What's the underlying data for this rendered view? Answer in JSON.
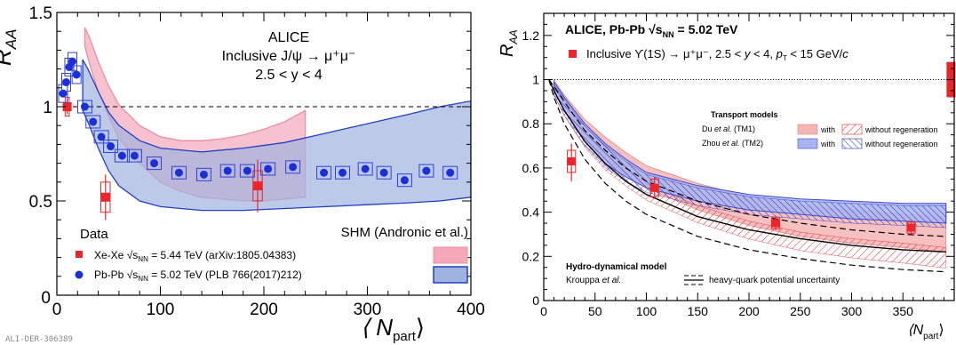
{
  "footer_id": "ALI-DER-306389",
  "chart_data": [
    {
      "type": "scatter",
      "ylabel_main": "R",
      "ylabel_sub": "AA",
      "xlabel_main": "⟨ N",
      "xlabel_sub": "part",
      "xlabel_close": "⟩",
      "xlim": [
        0,
        400
      ],
      "ylim": [
        0,
        1.5
      ],
      "xticks": [
        0,
        100,
        200,
        300,
        400
      ],
      "xtick_labels": [
        "0",
        "100",
        "200",
        "300",
        "400"
      ],
      "yticks": [
        0.5,
        1,
        1.5
      ],
      "ytick_labels": [
        "0.5",
        "1",
        "1.5"
      ],
      "y0_label": "0",
      "reference_line": 1,
      "annotation_lines": [
        "ALICE",
        "Inclusive J/ψ → μ⁺μ⁻",
        "2.5 < y < 4"
      ],
      "data_label": "Data",
      "model_label": "SHM (Andronic et al.)",
      "legend": {
        "xexe_prefix": "Xe-Xe",
        "xexe_sqrt": "√s",
        "xexe_nn": "NN",
        "xexe_suffix": "= 5.44 TeV (arXiv:1805.04383)",
        "pbpb_prefix": "Pb-Pb",
        "pbpb_sqrt": "√s",
        "pbpb_nn": "NN",
        "pbpb_suffix": "= 5.02 TeV (PLB 766(2017)212)"
      },
      "series": [
        {
          "marker": "square",
          "color": "#e8262b",
          "x": [
            10,
            47,
            194
          ],
          "y": [
            1.0,
            0.52,
            0.58
          ],
          "err": [
            0.04,
            0.12,
            0.14
          ],
          "sys_w": [
            4,
            9,
            9
          ],
          "sys_h": [
            0.05,
            0.08,
            0.08
          ]
        },
        {
          "marker": "circle",
          "color": "#1a2fd6",
          "x": [
            6,
            9,
            12,
            15,
            19,
            27,
            35,
            43,
            52,
            63,
            75,
            94,
            118,
            142,
            165,
            184,
            204,
            228,
            258,
            276,
            298,
            316,
            336,
            357,
            380
          ],
          "y": [
            1.07,
            1.13,
            1.21,
            1.24,
            1.17,
            1.0,
            0.92,
            0.84,
            0.79,
            0.74,
            0.74,
            0.7,
            0.65,
            0.64,
            0.66,
            0.66,
            0.67,
            0.68,
            0.65,
            0.65,
            0.67,
            0.65,
            0.61,
            0.66,
            0.65
          ]
        }
      ],
      "bands": [
        {
          "name": "xexe_shm",
          "fill": "#f4a8ba",
          "stroke": "#f08ca0",
          "x": [
            27,
            32,
            40,
            50,
            60,
            80,
            100,
            120,
            140,
            160,
            180,
            200,
            220,
            240
          ],
          "upper": [
            1.42,
            1.36,
            1.24,
            1.11,
            1.01,
            0.9,
            0.84,
            0.82,
            0.82,
            0.83,
            0.85,
            0.88,
            0.92,
            0.98
          ],
          "lower": [
            1.32,
            1.22,
            1.08,
            0.95,
            0.83,
            0.7,
            0.6,
            0.55,
            0.52,
            0.51,
            0.5,
            0.5,
            0.51,
            0.52
          ]
        },
        {
          "name": "pbpb_shm",
          "fill": "#9fb2e0",
          "stroke": "#2040c0",
          "x": [
            25,
            30,
            40,
            50,
            60,
            80,
            100,
            140,
            180,
            220,
            260,
            300,
            340,
            370,
            400
          ],
          "upper": [
            1.25,
            1.2,
            1.08,
            0.97,
            0.9,
            0.82,
            0.78,
            0.76,
            0.78,
            0.81,
            0.86,
            0.91,
            0.96,
            1.0,
            1.03
          ],
          "lower": [
            0.98,
            0.92,
            0.78,
            0.66,
            0.58,
            0.5,
            0.47,
            0.45,
            0.45,
            0.46,
            0.47,
            0.48,
            0.49,
            0.5,
            0.52
          ]
        }
      ]
    },
    {
      "type": "scatter",
      "ylabel_main": "R",
      "ylabel_sub": "AA",
      "xlabel_open": "⟨N",
      "xlabel_sub": "part",
      "xlabel_close": "⟩",
      "xlim": [
        0,
        400
      ],
      "ylim": [
        0,
        1.3
      ],
      "xticks": [
        0,
        50,
        100,
        150,
        200,
        250,
        300,
        350
      ],
      "xtick_labels": [
        "0",
        "50",
        "100",
        "150",
        "200",
        "250",
        "300",
        "350"
      ],
      "yticks": [
        0,
        0.2,
        0.4,
        0.6,
        0.8,
        1,
        1.2
      ],
      "ytick_labels": [
        "0",
        "0.2",
        "0.4",
        "0.6",
        "0.8",
        "1",
        "1.2"
      ],
      "reference_line": 1,
      "title": {
        "prefix": "ALICE, Pb-Pb ",
        "sqrt": "√s",
        "nn": "NN",
        "suffix": " = 5.02 TeV"
      },
      "legend_data": {
        "prefix": "Inclusive ϒ(1S) → μ⁺μ⁻, 2.5 < ",
        "y": "y",
        "mid": " < 4, ",
        "pt": "p",
        "pt_sub": "T",
        "suffix": " < 15 GeV/",
        "c": "c"
      },
      "transport": {
        "title": "Transport models",
        "tm1_name": "Du ",
        "tm1_etal": "et al.",
        "tm1_tag": " (TM1)",
        "tm2_name": "Zhou ",
        "tm2_etal": "et al.",
        "tm2_tag": " (TM2)",
        "with_label": "with",
        "without_label": "without regeneration"
      },
      "hydro": {
        "title": "Hydro-dynamical model",
        "name": "Krouppa ",
        "etal": "et al.",
        "uncertainty_label": "heavy-quark potential uncertainty"
      },
      "series": [
        {
          "marker": "square",
          "color": "#e8262b",
          "x": [
            27,
            108,
            226,
            358
          ],
          "y": [
            0.63,
            0.51,
            0.35,
            0.33
          ],
          "err_up": [
            0.08,
            0.05,
            0.03,
            0.03
          ],
          "err_dn": [
            0.09,
            0.05,
            0.03,
            0.03
          ],
          "sys_w": [
            8,
            8,
            8,
            8
          ],
          "sys_h": [
            0.05,
            0.04,
            0.025,
            0.025
          ]
        }
      ],
      "global_box": {
        "x": 396,
        "y": 1.0,
        "half_h": 0.08,
        "color": "#e8262b"
      },
      "bands": [
        {
          "name": "tm1_with",
          "fill": "#f5b5b5",
          "x": [
            10,
            20,
            40,
            60,
            80,
            100,
            150,
            200,
            250,
            300,
            350,
            392
          ],
          "upper": [
            1.0,
            0.93,
            0.82,
            0.74,
            0.67,
            0.61,
            0.53,
            0.47,
            0.43,
            0.41,
            0.39,
            0.38
          ],
          "lower": [
            0.97,
            0.88,
            0.74,
            0.64,
            0.57,
            0.51,
            0.41,
            0.34,
            0.29,
            0.26,
            0.24,
            0.22
          ]
        },
        {
          "name": "tm2_with",
          "fill": "#aab4f0",
          "x": [
            10,
            20,
            40,
            60,
            80,
            100,
            150,
            200,
            250,
            300,
            350,
            392
          ],
          "upper": [
            0.99,
            0.92,
            0.8,
            0.71,
            0.64,
            0.58,
            0.52,
            0.48,
            0.46,
            0.45,
            0.44,
            0.44
          ],
          "lower": [
            0.95,
            0.86,
            0.72,
            0.62,
            0.56,
            0.51,
            0.45,
            0.41,
            0.39,
            0.37,
            0.36,
            0.35
          ]
        }
      ],
      "hydro_lines": {
        "x": [
          5,
          10,
          20,
          40,
          60,
          80,
          100,
          150,
          200,
          250,
          300,
          350,
          392
        ],
        "upper": [
          1.0,
          0.97,
          0.9,
          0.77,
          0.68,
          0.6,
          0.54,
          0.45,
          0.39,
          0.35,
          0.32,
          0.3,
          0.29
        ],
        "mid": [
          1.0,
          0.95,
          0.86,
          0.72,
          0.62,
          0.54,
          0.48,
          0.38,
          0.32,
          0.28,
          0.25,
          0.23,
          0.22
        ],
        "lower": [
          1.0,
          0.92,
          0.8,
          0.64,
          0.53,
          0.45,
          0.39,
          0.29,
          0.23,
          0.19,
          0.16,
          0.14,
          0.13
        ]
      }
    }
  ]
}
